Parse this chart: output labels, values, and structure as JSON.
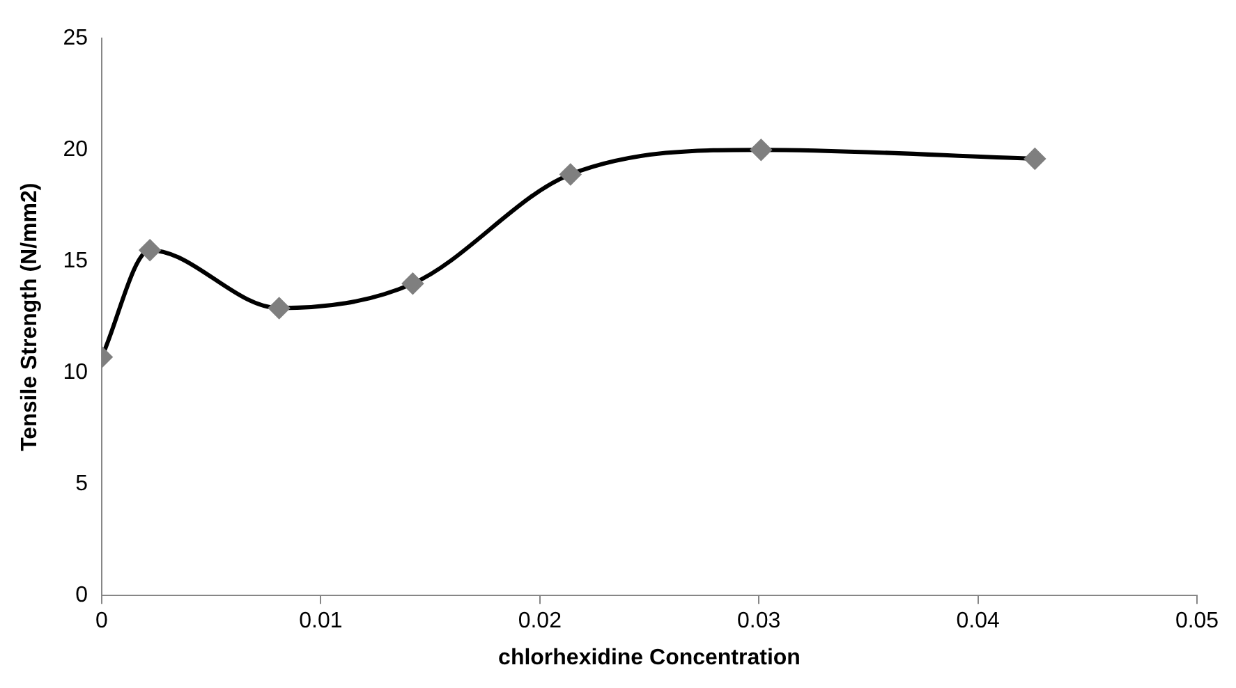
{
  "chart_data": {
    "type": "line",
    "xlabel": "chlorhexidine Concentration",
    "ylabel": "Tensile Strength (N/mm2)",
    "x": [
      0,
      0.0022,
      0.0081,
      0.0142,
      0.0214,
      0.0301,
      0.0426
    ],
    "series": [
      {
        "color": "#000000",
        "values": [
          10.7,
          15.5,
          12.9,
          14.0,
          18.9,
          20.0,
          19.6
        ]
      }
    ],
    "xlim": [
      0,
      0.05
    ],
    "xticks": [
      0,
      0.01,
      0.02,
      0.03,
      0.04,
      0.05
    ],
    "ylim": [
      0,
      25
    ],
    "yticks": [
      0,
      5,
      10,
      15,
      20,
      25
    ],
    "grid": false,
    "legend": false,
    "marker": "diamond",
    "line_style": "solid"
  }
}
